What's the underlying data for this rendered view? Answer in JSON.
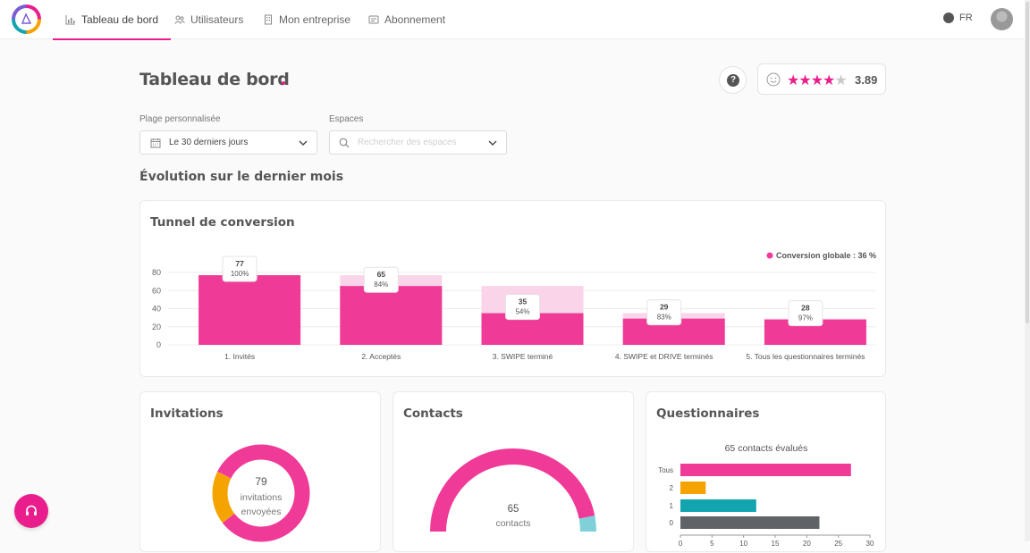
{
  "nav": {
    "tabs": [
      {
        "label": "Tableau de bord",
        "icon": "bar-chart-icon",
        "active": true
      },
      {
        "label": "Utilisateurs",
        "icon": "users-icon",
        "active": false
      },
      {
        "label": "Mon entreprise",
        "icon": "building-icon",
        "active": false
      },
      {
        "label": "Abonnement",
        "icon": "subscription-icon",
        "active": false
      }
    ],
    "language": "FR"
  },
  "page": {
    "title": "Tableau de bord",
    "help_label": "?",
    "rating": {
      "value": "3.89",
      "stars_filled": 4,
      "stars_total": 5
    }
  },
  "filters": {
    "range_label": "Plage personnalisée",
    "range_value": "Le 30 derniers jours",
    "spaces_label": "Espaces",
    "spaces_placeholder": "Rechercher des espaces"
  },
  "section_title": "Évolution sur le dernier mois",
  "conversion": {
    "title": "Tunnel de conversion",
    "legend": "Conversion globale : 36 %",
    "chart_data": {
      "type": "bar",
      "title": "Tunnel de conversion",
      "categories": [
        "1. Invités",
        "2. Acceptés",
        "3. SWIPE terminé",
        "4. SWIPE et DRIVE terminés",
        "5. Tous les questionnaires terminés"
      ],
      "values": [
        77,
        65,
        35,
        29,
        28
      ],
      "previous_values": [
        77,
        77,
        65,
        35,
        29
      ],
      "value_labels": [
        "77",
        "65",
        "35",
        "29",
        "28"
      ],
      "percent_labels": [
        "100%",
        "84%",
        "54%",
        "83%",
        "97%"
      ],
      "yticks": [
        "0",
        "20",
        "40",
        "60",
        "80"
      ],
      "ylim": [
        0,
        80
      ],
      "grid": true,
      "legend_position": "top-right",
      "colors": {
        "bar": "#f03a97",
        "previous": "#fad4e8"
      }
    }
  },
  "invitations": {
    "title": "Invitations",
    "center_value": "79",
    "center_line1": "invitations",
    "center_line2": "envoyées",
    "chart_data": {
      "type": "pie",
      "slices": [
        {
          "value": 65,
          "color": "#f03a97"
        },
        {
          "value": 14,
          "color": "#f5a300"
        }
      ]
    }
  },
  "contacts": {
    "title": "Contacts",
    "center_value": "65",
    "center_label": "contacts",
    "chart_data": {
      "type": "pie",
      "slices": [
        {
          "value": 61,
          "color": "#f03a97"
        },
        {
          "value": 4,
          "color": "#7fd0d8"
        }
      ]
    }
  },
  "questionnaires": {
    "title": "Questionnaires",
    "subtitle": "65 contacts évalués",
    "chart_data": {
      "type": "bar",
      "orientation": "horizontal",
      "categories": [
        "Tous",
        "2",
        "1",
        "0"
      ],
      "values": [
        27,
        4,
        12,
        22
      ],
      "colors": [
        "#f03a97",
        "#f5a300",
        "#12a5b0",
        "#5f6368"
      ],
      "xticks": [
        "0",
        "5",
        "10",
        "15",
        "20",
        "25",
        "30"
      ],
      "xlim": [
        0,
        30
      ]
    }
  }
}
